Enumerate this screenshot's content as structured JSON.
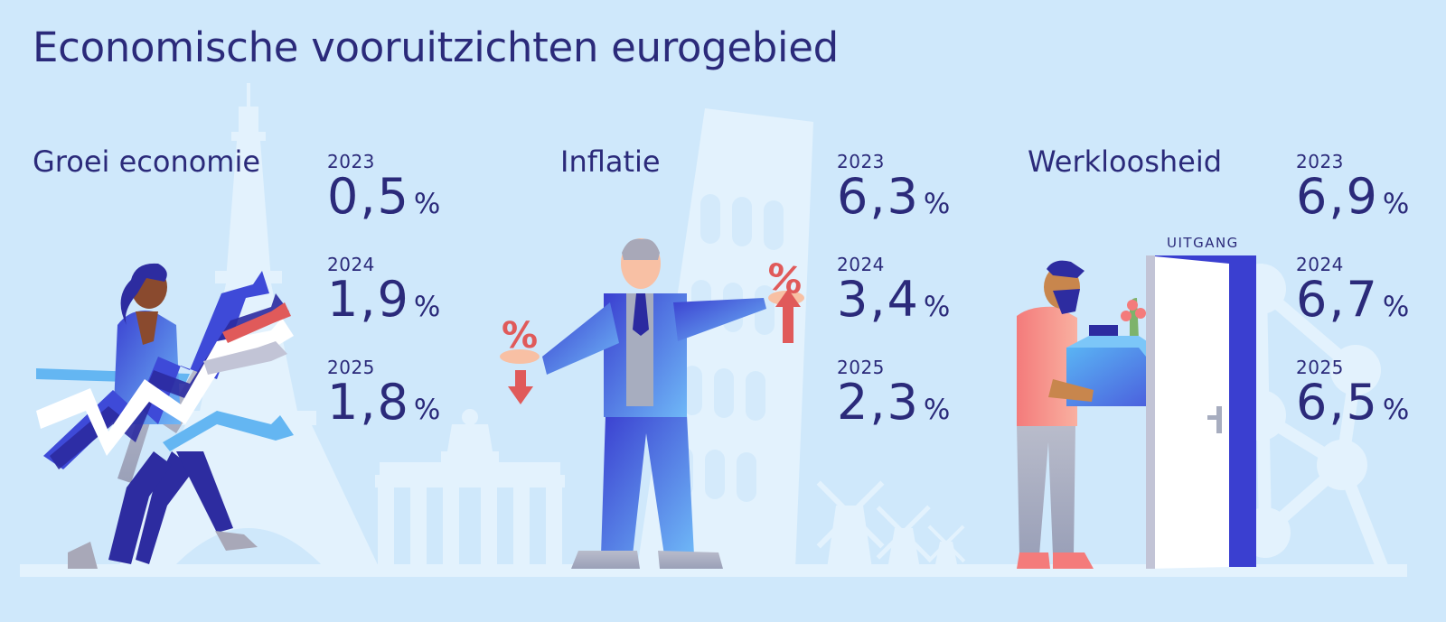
{
  "title": "Economische vooruitzichten eurogebied",
  "sections": [
    {
      "name": "Groei economie",
      "stats": [
        {
          "year": "2023",
          "value": "0,5",
          "unit": "%"
        },
        {
          "year": "2024",
          "value": "1,9",
          "unit": "%"
        },
        {
          "year": "2025",
          "value": "1,8",
          "unit": "%"
        }
      ]
    },
    {
      "name": "Inflatie",
      "stats": [
        {
          "year": "2023",
          "value": "6,3",
          "unit": "%"
        },
        {
          "year": "2024",
          "value": "3,4",
          "unit": "%"
        },
        {
          "year": "2025",
          "value": "2,3",
          "unit": "%"
        }
      ]
    },
    {
      "name": "Werkloosheid",
      "stats": [
        {
          "year": "2023",
          "value": "6,9",
          "unit": "%"
        },
        {
          "year": "2024",
          "value": "6,7",
          "unit": "%"
        },
        {
          "year": "2025",
          "value": "6,5",
          "unit": "%"
        }
      ]
    }
  ],
  "exit_sign": "UITGANG",
  "icons": {
    "eiffel": "eiffel-tower-icon",
    "brandenburg": "brandenburg-gate-icon",
    "pisa": "leaning-tower-icon",
    "windmills": "windmill-icon",
    "atomium": "atomium-icon",
    "growth_woman": "businesswoman-arrows-icon",
    "inflation_man": "businessman-percent-icon",
    "unemployed_man": "man-carrying-box-icon",
    "exit_door": "exit-door-icon"
  },
  "colors": {
    "background": "#cfe8fb",
    "text": "#2b2a7a",
    "landmark": "#e3f2fd",
    "accent_red": "#e05a5a",
    "accent_blue": "#4a5bdc"
  }
}
